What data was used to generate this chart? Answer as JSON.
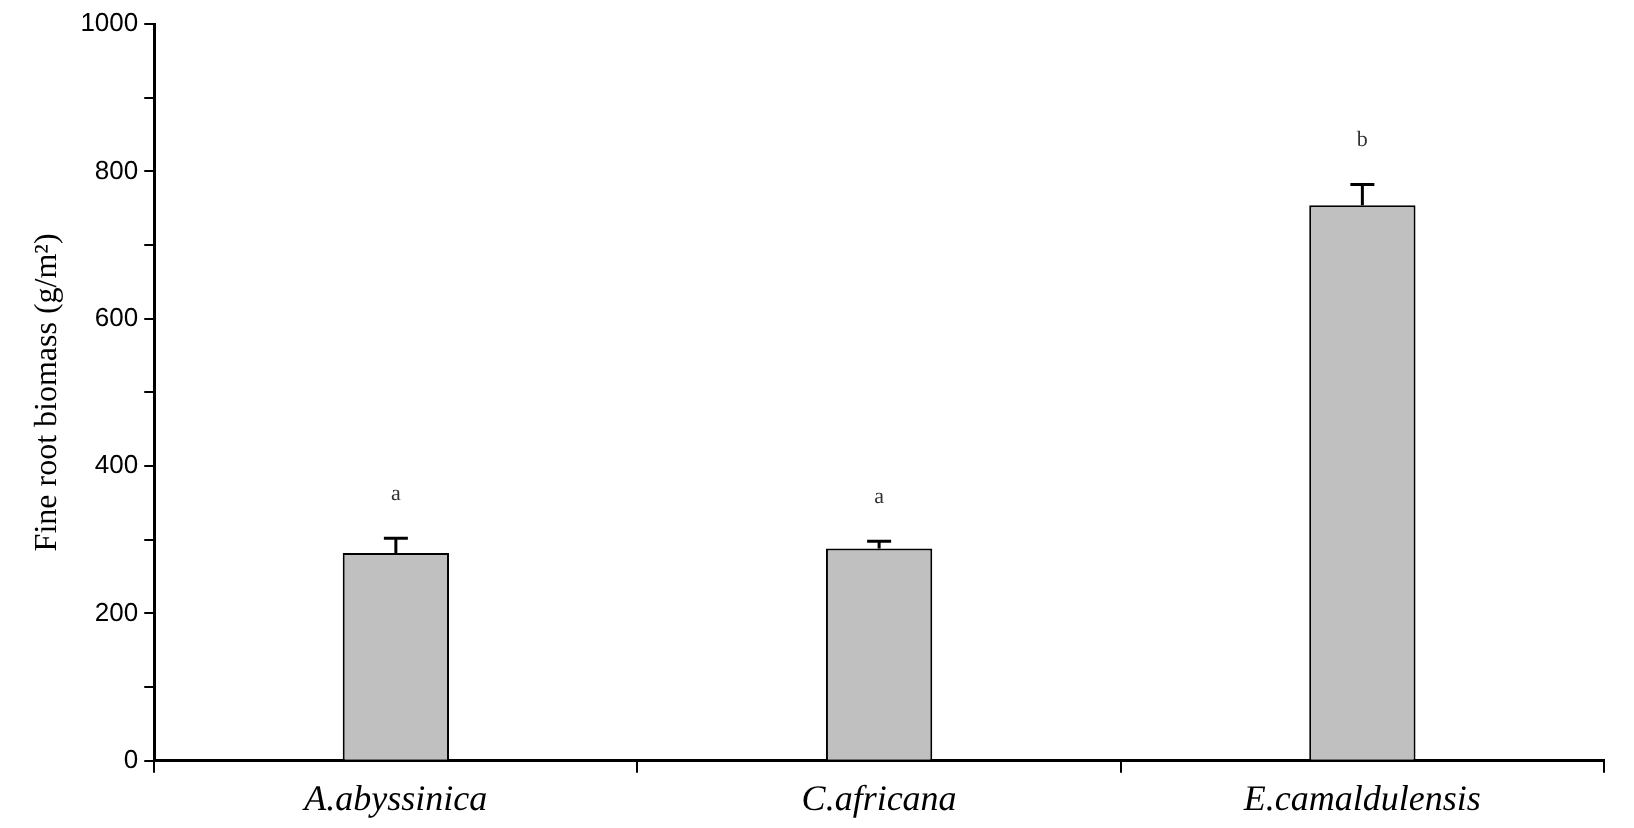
{
  "chart_data": {
    "type": "bar",
    "ylabel": "Fine root biomass (g/m²)",
    "categories": [
      "A.abyssinica",
      "C.africana",
      "E.camaldulensis"
    ],
    "values": [
      282,
      288,
      754
    ],
    "errors": [
      20,
      10,
      28
    ],
    "color": "#c0c0c0",
    "ylim": [
      0,
      1000
    ],
    "yticks": [
      0,
      {
        "value": 100,
        "label": null
      },
      200,
      {
        "value": 300,
        "label": null
      },
      400,
      {
        "value": 500,
        "label": null
      },
      600,
      {
        "value": 700,
        "label": null
      },
      800,
      {
        "value": 900,
        "label": null
      },
      1000
    ],
    "annotations": [
      "a",
      "a",
      "b"
    ],
    "grid": false,
    "legend": false
  }
}
